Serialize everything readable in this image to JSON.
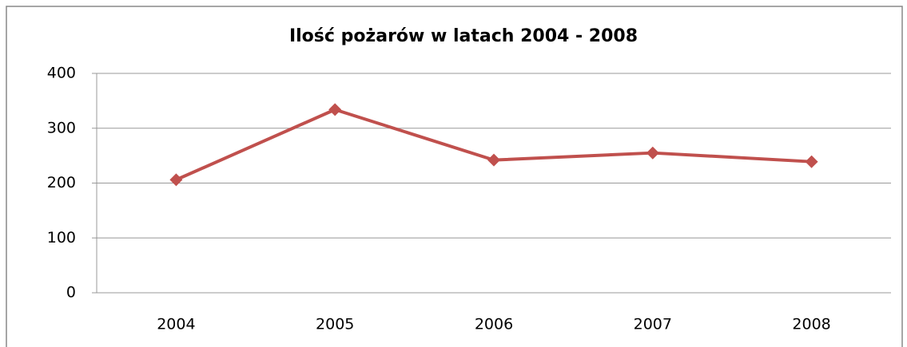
{
  "chart_data": {
    "type": "line",
    "title": "Ilość pożarów w latach 2004 - 2008",
    "categories": [
      "2004",
      "2005",
      "2006",
      "2007",
      "2008"
    ],
    "series": [
      {
        "name": "Ilość pożarów",
        "color": "#c0504d",
        "values": [
          206,
          334,
          242,
          255,
          239
        ]
      }
    ],
    "ylim": [
      0,
      400
    ],
    "yticks": [
      0,
      100,
      200,
      300,
      400
    ],
    "grid": true
  }
}
